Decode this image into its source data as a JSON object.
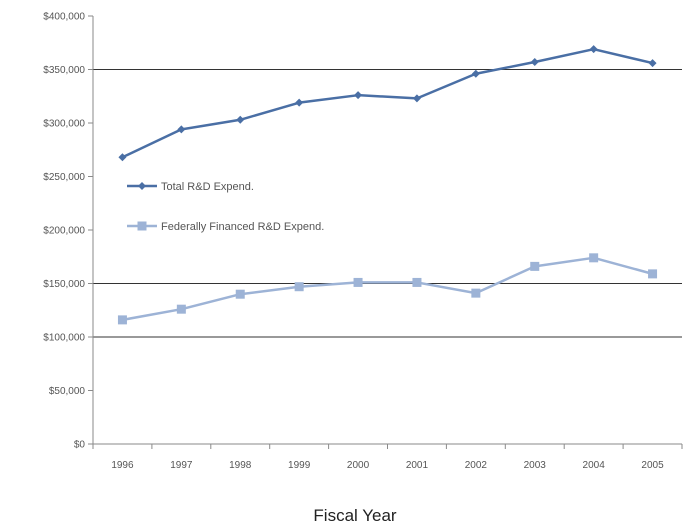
{
  "chart_data": {
    "type": "line",
    "xlabel": "Fiscal Year",
    "ylabel": "",
    "ylim": [
      0,
      400000
    ],
    "yticks": [
      0,
      50000,
      100000,
      150000,
      200000,
      250000,
      300000,
      350000,
      400000
    ],
    "ytick_labels": [
      "$0",
      "$50,000",
      "$100,000",
      "$150,000",
      "$200,000",
      "$250,000",
      "$300,000",
      "$350,000",
      "$400,000"
    ],
    "categories": [
      "1996",
      "1997",
      "1998",
      "1999",
      "2000",
      "2001",
      "2002",
      "2003",
      "2004",
      "2005"
    ],
    "grid": "horizontal major lines at $150,000, $100,000 and $350,000",
    "legend_position": "left-middle",
    "series": [
      {
        "name": "Total R&D Expend.",
        "color": "#4A6FA5",
        "marker": "diamond",
        "values": [
          268000,
          294000,
          303000,
          319000,
          326000,
          323000,
          346000,
          357000,
          369000,
          356000
        ]
      },
      {
        "name": "Federally Financed R&D Expend.",
        "color": "#9DB3D6",
        "marker": "square",
        "values": [
          116000,
          126000,
          140000,
          147000,
          151000,
          151000,
          141000,
          166000,
          174000,
          159000
        ]
      }
    ]
  }
}
